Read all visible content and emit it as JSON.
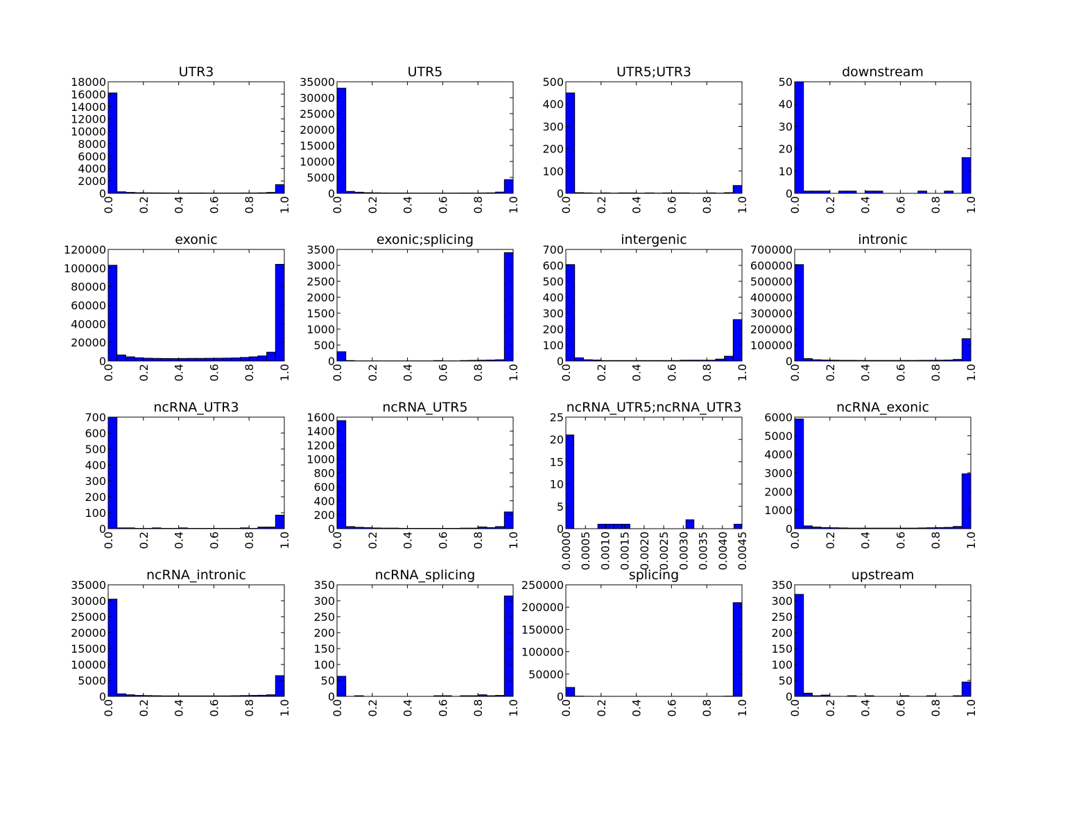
{
  "chart_data": [
    {
      "type": "bar",
      "title": "UTR3",
      "xlim": [
        0,
        1
      ],
      "ylim": [
        0,
        18000
      ],
      "xticks": [
        0,
        0.2,
        0.4,
        0.6,
        0.8,
        1
      ],
      "xtick_labels": [
        "0.0",
        "0.2",
        "0.4",
        "0.6",
        "0.8",
        "1.0"
      ],
      "yticks": [
        0,
        2000,
        4000,
        6000,
        8000,
        10000,
        12000,
        14000,
        16000,
        18000
      ],
      "ytick_labels": [
        "0",
        "2000",
        "4000",
        "6000",
        "8000",
        "10000",
        "12000",
        "14000",
        "16000",
        "18000"
      ],
      "values": [
        16200,
        250,
        150,
        100,
        80,
        70,
        60,
        50,
        50,
        60,
        60,
        50,
        50,
        50,
        50,
        60,
        60,
        80,
        150,
        1400
      ]
    },
    {
      "type": "bar",
      "title": "UTR5",
      "xlim": [
        0,
        1
      ],
      "ylim": [
        0,
        35000
      ],
      "xticks": [
        0,
        0.2,
        0.4,
        0.6,
        0.8,
        1
      ],
      "xtick_labels": [
        "0.0",
        "0.2",
        "0.4",
        "0.6",
        "0.8",
        "1.0"
      ],
      "yticks": [
        0,
        5000,
        10000,
        15000,
        20000,
        25000,
        30000,
        35000
      ],
      "ytick_labels": [
        "0",
        "5000",
        "10000",
        "15000",
        "20000",
        "25000",
        "30000",
        "35000"
      ],
      "values": [
        33000,
        600,
        350,
        200,
        150,
        120,
        100,
        100,
        90,
        90,
        90,
        90,
        90,
        90,
        100,
        100,
        120,
        150,
        400,
        4300
      ]
    },
    {
      "type": "bar",
      "title": "UTR5;UTR3",
      "xlim": [
        0,
        1
      ],
      "ylim": [
        0,
        500
      ],
      "xticks": [
        0,
        0.2,
        0.4,
        0.6,
        0.8,
        1
      ],
      "xtick_labels": [
        "0.0",
        "0.2",
        "0.4",
        "0.6",
        "0.8",
        "1.0"
      ],
      "yticks": [
        0,
        100,
        200,
        300,
        400,
        500
      ],
      "ytick_labels": [
        "0",
        "100",
        "200",
        "300",
        "400",
        "500"
      ],
      "values": [
        450,
        3,
        2,
        1,
        2,
        1,
        2,
        2,
        1,
        2,
        1,
        2,
        2,
        2,
        1,
        1,
        2,
        1,
        3,
        35
      ]
    },
    {
      "type": "bar",
      "title": "downstream",
      "xlim": [
        0,
        1
      ],
      "ylim": [
        0,
        50
      ],
      "xticks": [
        0,
        0.2,
        0.4,
        0.6,
        0.8,
        1
      ],
      "xtick_labels": [
        "0.0",
        "0.2",
        "0.4",
        "0.6",
        "0.8",
        "1.0"
      ],
      "yticks": [
        0,
        10,
        20,
        30,
        40,
        50
      ],
      "ytick_labels": [
        "0",
        "10",
        "20",
        "30",
        "40",
        "50"
      ],
      "values": [
        50,
        1,
        1,
        1,
        0,
        1,
        1,
        0,
        1,
        1,
        0,
        0,
        0,
        0,
        1,
        0,
        0,
        1,
        0,
        16
      ]
    },
    {
      "type": "bar",
      "title": "exonic",
      "xlim": [
        0,
        1
      ],
      "ylim": [
        0,
        120000
      ],
      "xticks": [
        0,
        0.2,
        0.4,
        0.6,
        0.8,
        1
      ],
      "xtick_labels": [
        "0.0",
        "0.2",
        "0.4",
        "0.6",
        "0.8",
        "1.0"
      ],
      "yticks": [
        0,
        20000,
        40000,
        60000,
        80000,
        100000,
        120000
      ],
      "ytick_labels": [
        "0",
        "20000",
        "40000",
        "60000",
        "80000",
        "100000",
        "120000"
      ],
      "values": [
        103000,
        6500,
        4500,
        3500,
        3000,
        2800,
        2700,
        2600,
        2700,
        2800,
        2800,
        2900,
        3000,
        3100,
        3300,
        3800,
        4500,
        5500,
        9500,
        104000
      ]
    },
    {
      "type": "bar",
      "title": "exonic;splicing",
      "xlim": [
        0,
        1
      ],
      "ylim": [
        0,
        3500
      ],
      "xticks": [
        0,
        0.2,
        0.4,
        0.6,
        0.8,
        1
      ],
      "xtick_labels": [
        "0.0",
        "0.2",
        "0.4",
        "0.6",
        "0.8",
        "1.0"
      ],
      "yticks": [
        0,
        500,
        1000,
        1500,
        2000,
        2500,
        3000,
        3500
      ],
      "ytick_labels": [
        "0",
        "500",
        "1000",
        "1500",
        "2000",
        "2500",
        "3000",
        "3500"
      ],
      "values": [
        290,
        15,
        5,
        5,
        5,
        5,
        5,
        5,
        5,
        5,
        5,
        15,
        5,
        5,
        15,
        20,
        25,
        30,
        40,
        3400
      ]
    },
    {
      "type": "bar",
      "title": "intergenic",
      "xlim": [
        0,
        1
      ],
      "ylim": [
        0,
        700
      ],
      "xticks": [
        0,
        0.2,
        0.4,
        0.6,
        0.8,
        1
      ],
      "xtick_labels": [
        "0.0",
        "0.2",
        "0.4",
        "0.6",
        "0.8",
        "1.0"
      ],
      "yticks": [
        0,
        100,
        200,
        300,
        400,
        500,
        600,
        700
      ],
      "ytick_labels": [
        "0",
        "100",
        "200",
        "300",
        "400",
        "500",
        "600",
        "700"
      ],
      "values": [
        605,
        20,
        8,
        6,
        3,
        3,
        3,
        3,
        3,
        3,
        3,
        3,
        3,
        5,
        5,
        5,
        5,
        12,
        30,
        260
      ]
    },
    {
      "type": "bar",
      "title": "intronic",
      "xlim": [
        0,
        1
      ],
      "ylim": [
        0,
        700000
      ],
      "xticks": [
        0,
        0.2,
        0.4,
        0.6,
        0.8,
        1
      ],
      "xtick_labels": [
        "0.0",
        "0.2",
        "0.4",
        "0.6",
        "0.8",
        "1.0"
      ],
      "yticks": [
        0,
        100000,
        200000,
        300000,
        400000,
        500000,
        600000,
        700000
      ],
      "ytick_labels": [
        "0",
        "100000",
        "200000",
        "300000",
        "400000",
        "500000",
        "600000",
        "700000"
      ],
      "values": [
        605000,
        15000,
        8000,
        6000,
        5000,
        4000,
        4000,
        3500,
        3500,
        3500,
        3500,
        3500,
        3500,
        3500,
        4000,
        4500,
        5000,
        6000,
        10000,
        140000
      ]
    },
    {
      "type": "bar",
      "title": "ncRNA_UTR3",
      "xlim": [
        0,
        1
      ],
      "ylim": [
        0,
        700
      ],
      "xticks": [
        0,
        0.2,
        0.4,
        0.6,
        0.8,
        1
      ],
      "xtick_labels": [
        "0.0",
        "0.2",
        "0.4",
        "0.6",
        "0.8",
        "1.0"
      ],
      "yticks": [
        0,
        100,
        200,
        300,
        400,
        500,
        600,
        700
      ],
      "ytick_labels": [
        "0",
        "100",
        "200",
        "300",
        "400",
        "500",
        "600",
        "700"
      ],
      "values": [
        700,
        5,
        5,
        2,
        2,
        5,
        2,
        2,
        5,
        2,
        2,
        2,
        2,
        2,
        2,
        5,
        2,
        10,
        10,
        85
      ]
    },
    {
      "type": "bar",
      "title": "ncRNA_UTR5",
      "xlim": [
        0,
        1
      ],
      "ylim": [
        0,
        1600
      ],
      "xticks": [
        0,
        0.2,
        0.4,
        0.6,
        0.8,
        1
      ],
      "xtick_labels": [
        "0.0",
        "0.2",
        "0.4",
        "0.6",
        "0.8",
        "1.0"
      ],
      "yticks": [
        0,
        200,
        400,
        600,
        800,
        1000,
        1200,
        1400,
        1600
      ],
      "ytick_labels": [
        "0",
        "200",
        "400",
        "600",
        "800",
        "1000",
        "1200",
        "1400",
        "1600"
      ],
      "values": [
        1550,
        30,
        20,
        15,
        10,
        8,
        8,
        5,
        5,
        5,
        5,
        5,
        5,
        5,
        8,
        8,
        25,
        15,
        30,
        240
      ]
    },
    {
      "type": "bar",
      "title": "ncRNA_UTR5;ncRNA_UTR3",
      "xlim": [
        0,
        0.0045
      ],
      "ylim": [
        0,
        25
      ],
      "xticks": [
        0,
        0.0005,
        0.001,
        0.0015,
        0.002,
        0.0025,
        0.003,
        0.0035,
        0.004,
        0.0045
      ],
      "xtick_labels": [
        "0.0000",
        "0.0005",
        "0.0010",
        "0.0015",
        "0.0020",
        "0.0025",
        "0.0030",
        "0.0035",
        "0.0040",
        "0.0045"
      ],
      "yticks": [
        0,
        5,
        10,
        15,
        20,
        25
      ],
      "ytick_labels": [
        "0",
        "5",
        "10",
        "15",
        "20",
        "25"
      ],
      "values": [
        21,
        0,
        0,
        0,
        1,
        1,
        1,
        1,
        0,
        0,
        0,
        0,
        0,
        0,
        0,
        2,
        0,
        0,
        0,
        0,
        0,
        1
      ]
    },
    {
      "type": "bar",
      "title": "ncRNA_exonic",
      "xlim": [
        0,
        1
      ],
      "ylim": [
        0,
        6000
      ],
      "xticks": [
        0,
        0.2,
        0.4,
        0.6,
        0.8,
        1
      ],
      "xtick_labels": [
        "0.0",
        "0.2",
        "0.4",
        "0.6",
        "0.8",
        "1.0"
      ],
      "yticks": [
        0,
        1000,
        2000,
        3000,
        4000,
        5000,
        6000
      ],
      "ytick_labels": [
        "0",
        "1000",
        "2000",
        "3000",
        "4000",
        "5000",
        "6000"
      ],
      "values": [
        5900,
        150,
        90,
        60,
        50,
        40,
        30,
        30,
        30,
        30,
        30,
        30,
        30,
        30,
        40,
        50,
        60,
        70,
        120,
        2950
      ]
    },
    {
      "type": "bar",
      "title": "ncRNA_intronic",
      "xlim": [
        0,
        1
      ],
      "ylim": [
        0,
        35000
      ],
      "xticks": [
        0,
        0.2,
        0.4,
        0.6,
        0.8,
        1
      ],
      "xtick_labels": [
        "0.0",
        "0.2",
        "0.4",
        "0.6",
        "0.8",
        "1.0"
      ],
      "yticks": [
        0,
        5000,
        10000,
        15000,
        20000,
        25000,
        30000,
        35000
      ],
      "ytick_labels": [
        "0",
        "5000",
        "10000",
        "15000",
        "20000",
        "25000",
        "30000",
        "35000"
      ],
      "values": [
        30500,
        800,
        500,
        300,
        250,
        200,
        150,
        150,
        150,
        150,
        150,
        150,
        150,
        150,
        200,
        250,
        300,
        350,
        500,
        6500
      ]
    },
    {
      "type": "bar",
      "title": "ncRNA_splicing",
      "xlim": [
        0,
        1
      ],
      "ylim": [
        0,
        350
      ],
      "xticks": [
        0,
        0.2,
        0.4,
        0.6,
        0.8,
        1
      ],
      "xtick_labels": [
        "0.0",
        "0.2",
        "0.4",
        "0.6",
        "0.8",
        "1.0"
      ],
      "yticks": [
        0,
        50,
        100,
        150,
        200,
        250,
        300,
        350
      ],
      "ytick_labels": [
        "0",
        "50",
        "100",
        "150",
        "200",
        "250",
        "300",
        "350"
      ],
      "values": [
        63,
        0,
        2,
        0,
        0,
        0,
        0,
        0,
        0,
        0,
        0,
        2,
        2,
        0,
        2,
        2,
        5,
        2,
        3,
        315
      ]
    },
    {
      "type": "bar",
      "title": "splicing",
      "xlim": [
        0,
        1
      ],
      "ylim": [
        0,
        250000
      ],
      "xticks": [
        0,
        0.2,
        0.4,
        0.6,
        0.8,
        1
      ],
      "xtick_labels": [
        "0.0",
        "0.2",
        "0.4",
        "0.6",
        "0.8",
        "1.0"
      ],
      "yticks": [
        0,
        50000,
        100000,
        150000,
        200000,
        250000
      ],
      "ytick_labels": [
        "0",
        "50000",
        "100000",
        "150000",
        "200000",
        "250000"
      ],
      "values": [
        20000,
        600,
        200,
        100,
        80,
        70,
        60,
        60,
        60,
        60,
        60,
        60,
        60,
        60,
        60,
        70,
        100,
        200,
        600,
        210000
      ]
    },
    {
      "type": "bar",
      "title": "upstream",
      "xlim": [
        0,
        1
      ],
      "ylim": [
        0,
        350
      ],
      "xticks": [
        0,
        0.2,
        0.4,
        0.6,
        0.8,
        1
      ],
      "xtick_labels": [
        "0.0",
        "0.2",
        "0.4",
        "0.6",
        "0.8",
        "1.0"
      ],
      "yticks": [
        0,
        50,
        100,
        150,
        200,
        250,
        300,
        350
      ],
      "ytick_labels": [
        "0",
        "50",
        "100",
        "150",
        "200",
        "250",
        "300",
        "350"
      ],
      "values": [
        320,
        10,
        2,
        4,
        0,
        0,
        2,
        0,
        2,
        0,
        0,
        0,
        2,
        0,
        0,
        2,
        0,
        0,
        2,
        45
      ]
    }
  ]
}
